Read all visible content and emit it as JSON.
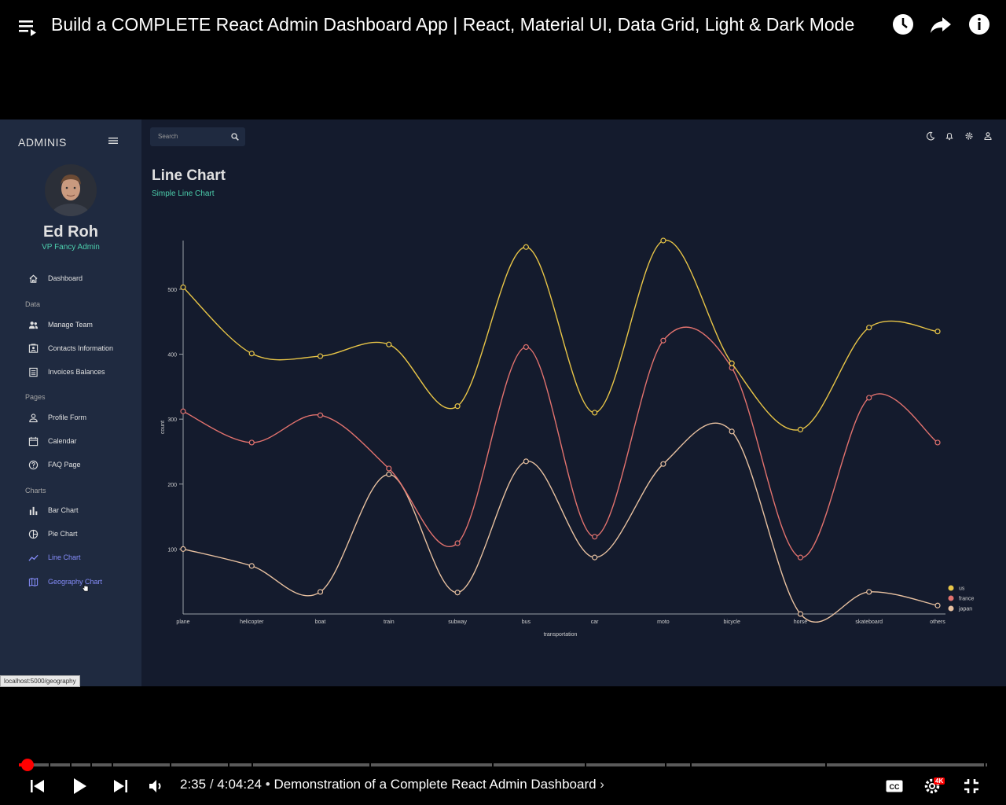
{
  "video": {
    "title": "Build a COMPLETE React Admin Dashboard App | React, Material UI, Data Grid, Light & Dark Mode",
    "current_time": "2:35",
    "duration": "4:04:24",
    "chapter": "Demonstration of a Complete React Admin Dashboard",
    "quality_badge": "4K",
    "progress_fraction": 0.0106
  },
  "app": {
    "brand": "ADMINIS",
    "user": {
      "name": "Ed Roh",
      "role": "VP Fancy Admin"
    },
    "search_placeholder": "Search",
    "status_url": "localhost:5000/geography",
    "nav": {
      "dashboard": "Dashboard",
      "section_data": "Data",
      "manage_team": "Manage Team",
      "contacts": "Contacts Information",
      "invoices": "Invoices Balances",
      "section_pages": "Pages",
      "profile_form": "Profile Form",
      "calendar": "Calendar",
      "faq": "FAQ Page",
      "section_charts": "Charts",
      "bar_chart": "Bar Chart",
      "pie_chart": "Pie Chart",
      "line_chart": "Line Chart",
      "geography_chart": "Geography Chart"
    },
    "page": {
      "title": "Line Chart",
      "subtitle": "Simple Line Chart"
    },
    "colors": {
      "accent_green": "#4cceac",
      "accent_blue": "#868dfb",
      "bg": "#141b2d",
      "sidebar_bg": "#1f2a40"
    }
  },
  "chart_data": {
    "type": "line",
    "title": "",
    "xlabel": "transportation",
    "ylabel": "count",
    "ylim": [
      0,
      575
    ],
    "yticks": [
      100,
      200,
      300,
      400,
      500
    ],
    "categories": [
      "plane",
      "helicopter",
      "boat",
      "train",
      "subway",
      "bus",
      "car",
      "moto",
      "bicycle",
      "horse",
      "skateboard",
      "others"
    ],
    "series": [
      {
        "name": "us",
        "color": "#e8c547",
        "values": [
          503,
          401,
          397,
          415,
          320,
          565,
          310,
          575,
          386,
          284,
          441,
          435
        ]
      },
      {
        "name": "france",
        "color": "#e2726e",
        "values": [
          312,
          264,
          306,
          224,
          109,
          411,
          119,
          421,
          379,
          87,
          333,
          264
        ]
      },
      {
        "name": "japan",
        "color": "#e8c1a0",
        "values": [
          100,
          74,
          34,
          215,
          33,
          235,
          87,
          231,
          281,
          0,
          34,
          13
        ]
      }
    ],
    "legend": "bottom-right",
    "grid": false
  }
}
